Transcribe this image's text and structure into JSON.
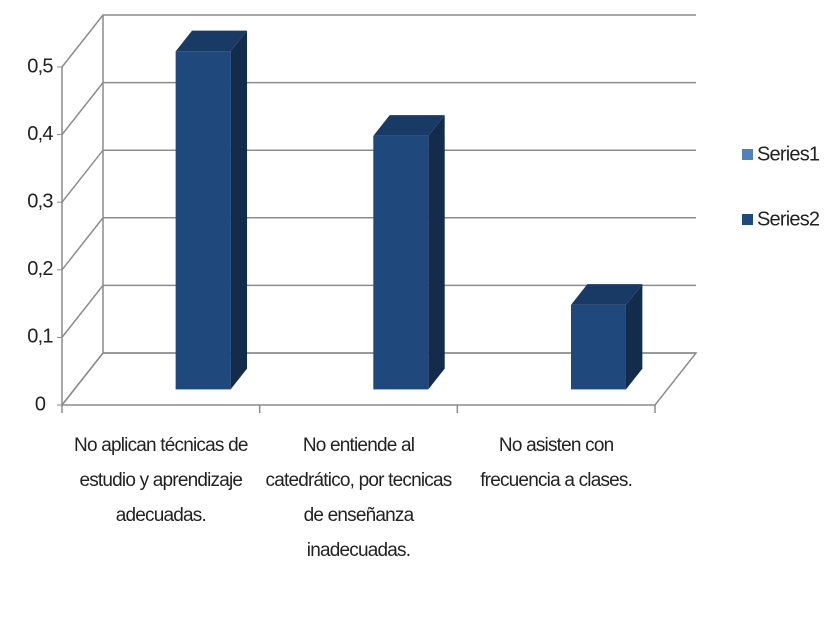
{
  "chart_data": {
    "type": "bar3d",
    "categories": [
      "No aplican técnicas de estudio y aprendizaje adecuadas.",
      "No entiende al catedrático, por tecnicas de enseñanza inadecuadas.",
      "No asisten con frecuencia a clases."
    ],
    "series": [
      {
        "name": "Series1",
        "color": "#4f81bd",
        "values": [
          null,
          null,
          null
        ]
      },
      {
        "name": "Series2",
        "color": "#1f497d",
        "values": [
          0.5,
          0.375,
          0.125
        ]
      }
    ],
    "ylim": [
      0,
      0.5
    ],
    "yticks": [
      0,
      {
        "value": 0.1,
        "label": "0,1"
      },
      {
        "value": 0.2,
        "label": "0,2"
      },
      {
        "value": 0.3,
        "label": "0,3"
      },
      {
        "value": 0.4,
        "label": "0,4"
      },
      {
        "value": 0.5,
        "label": "0,5"
      }
    ],
    "grid": true,
    "legend": "right"
  }
}
